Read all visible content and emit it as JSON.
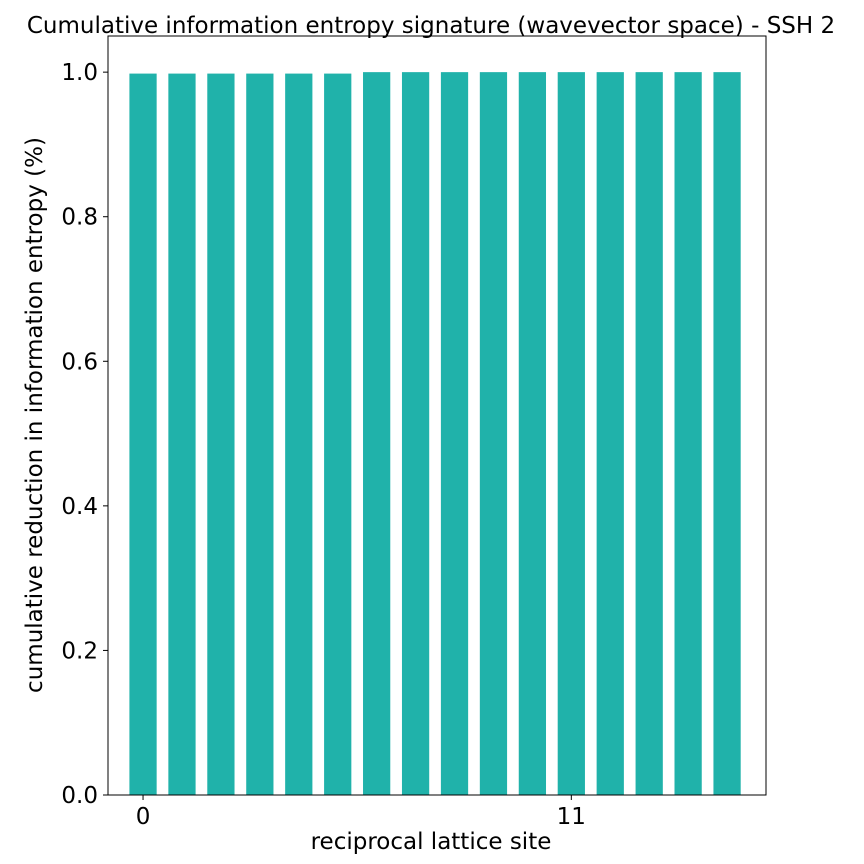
{
  "chart_data": {
    "type": "bar",
    "title": "Cumulative information entropy signature (wavevector space) - SSH 2",
    "xlabel": "reciprocal lattice site",
    "ylabel": "cumulative reduction in information entropy (%)",
    "categories": [
      0,
      1,
      2,
      3,
      4,
      5,
      6,
      7,
      8,
      9,
      10,
      11,
      12,
      13,
      14,
      15
    ],
    "values": [
      0.998,
      0.998,
      0.998,
      0.998,
      0.998,
      0.998,
      1.0,
      1.0,
      1.0,
      1.0,
      1.0,
      1.0,
      1.0,
      1.0,
      1.0,
      1.0
    ],
    "bar_color": "#20b2aa",
    "ylim": [
      0,
      1.05
    ],
    "xlim": [
      -0.9,
      16.0
    ],
    "yticks": [
      0.0,
      0.2,
      0.4,
      0.6,
      0.8,
      1.0
    ],
    "ytick_labels": [
      "0.0",
      "0.2",
      "0.4",
      "0.6",
      "0.8",
      "1.0"
    ],
    "xticks": [
      0,
      11
    ],
    "xtick_labels": [
      "0",
      "11"
    ],
    "grid": false,
    "legend": "none"
  }
}
